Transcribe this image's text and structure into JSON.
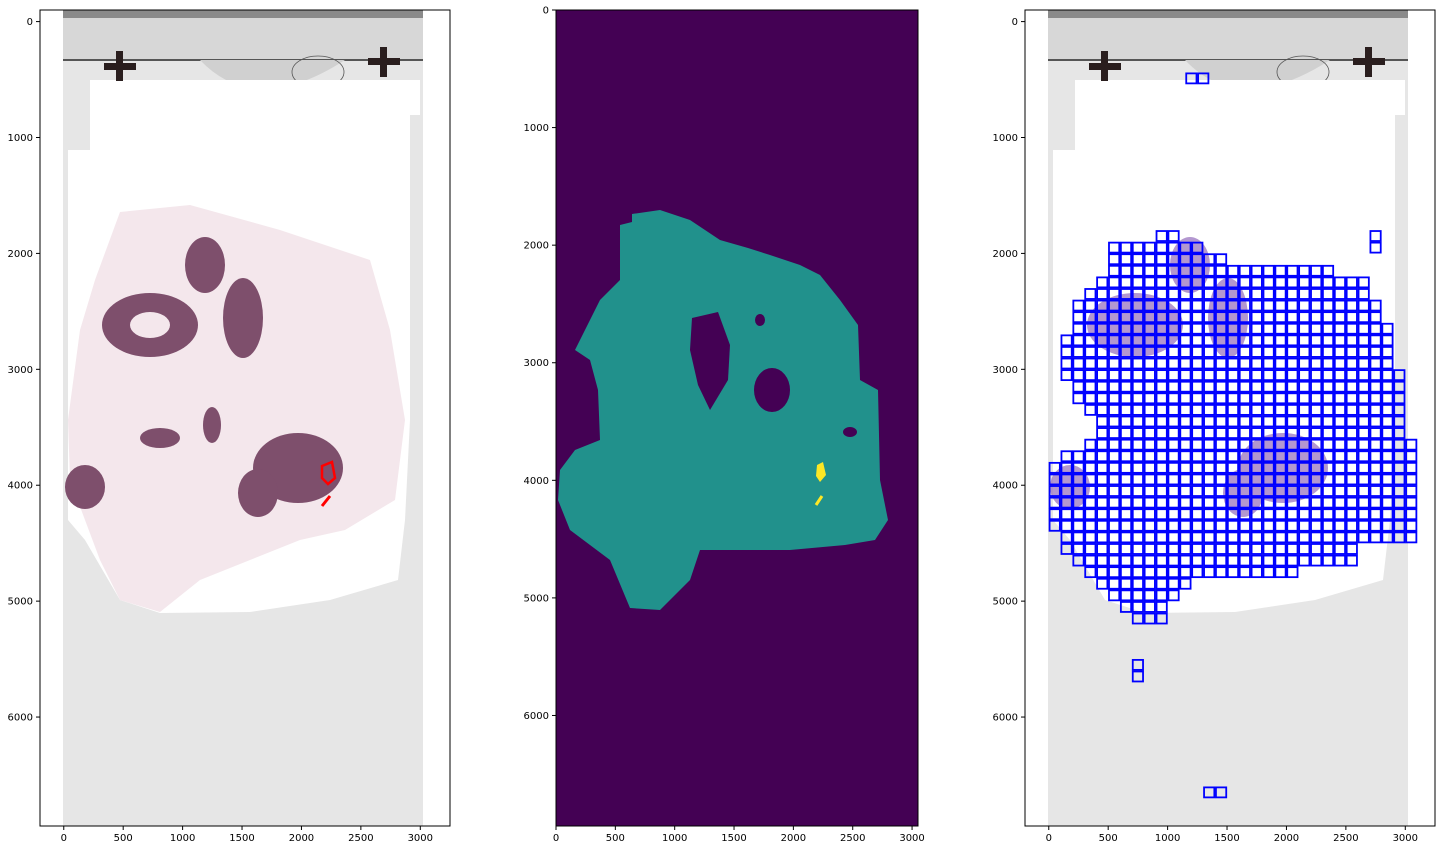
{
  "chart_data": [
    {
      "type": "image",
      "panel": "he-slide-with-annotation",
      "content": "whole-slide H&E thumbnail with red annotation contours",
      "xlim": [
        -200,
        3250
      ],
      "ylim": [
        6940,
        -100
      ],
      "xticks": [
        0,
        500,
        1000,
        1500,
        2000,
        2500,
        3000
      ],
      "yticks": [
        0,
        1000,
        2000,
        3000,
        4000,
        5000,
        6000
      ],
      "xtick_labels": [
        "0",
        "500",
        "1000",
        "1500",
        "2000",
        "2500",
        "3000"
      ],
      "ytick_labels": [
        "0",
        "1000",
        "2000",
        "3000",
        "4000",
        "5000",
        "6000"
      ],
      "annotation_color": "#ff0000"
    },
    {
      "type": "heatmap",
      "panel": "label-mask",
      "content": "segmentation mask rendered with viridis colormap",
      "colormap": "viridis",
      "classes": [
        0,
        1,
        2
      ],
      "class_colors": [
        "#440154",
        "#21918c",
        "#fde725"
      ],
      "xlim": [
        0,
        3050
      ],
      "ylim": [
        6940,
        0
      ],
      "xticks": [
        0,
        500,
        1000,
        1500,
        2000,
        2500,
        3000
      ],
      "yticks": [
        0,
        1000,
        2000,
        3000,
        4000,
        5000,
        6000
      ],
      "xtick_labels": [
        "0",
        "500",
        "1000",
        "1500",
        "2000",
        "2500",
        "3000"
      ],
      "ytick_labels": [
        "0",
        "1000",
        "2000",
        "3000",
        "4000",
        "5000",
        "6000"
      ]
    },
    {
      "type": "image",
      "panel": "tile-grid-overlay",
      "content": "whole-slide thumbnail with blue tile grid over tissue",
      "tile_size": 100,
      "tile_color": "#0000ff",
      "xlim": [
        -200,
        3250
      ],
      "ylim": [
        6940,
        -100
      ],
      "xticks": [
        0,
        500,
        1000,
        1500,
        2000,
        2500,
        3000
      ],
      "yticks": [
        0,
        1000,
        2000,
        3000,
        4000,
        5000,
        6000
      ],
      "xtick_labels": [
        "0",
        "500",
        "1000",
        "1500",
        "2000",
        "2500",
        "3000"
      ],
      "ytick_labels": [
        "0",
        "1000",
        "2000",
        "3000",
        "4000",
        "5000",
        "6000"
      ]
    }
  ]
}
